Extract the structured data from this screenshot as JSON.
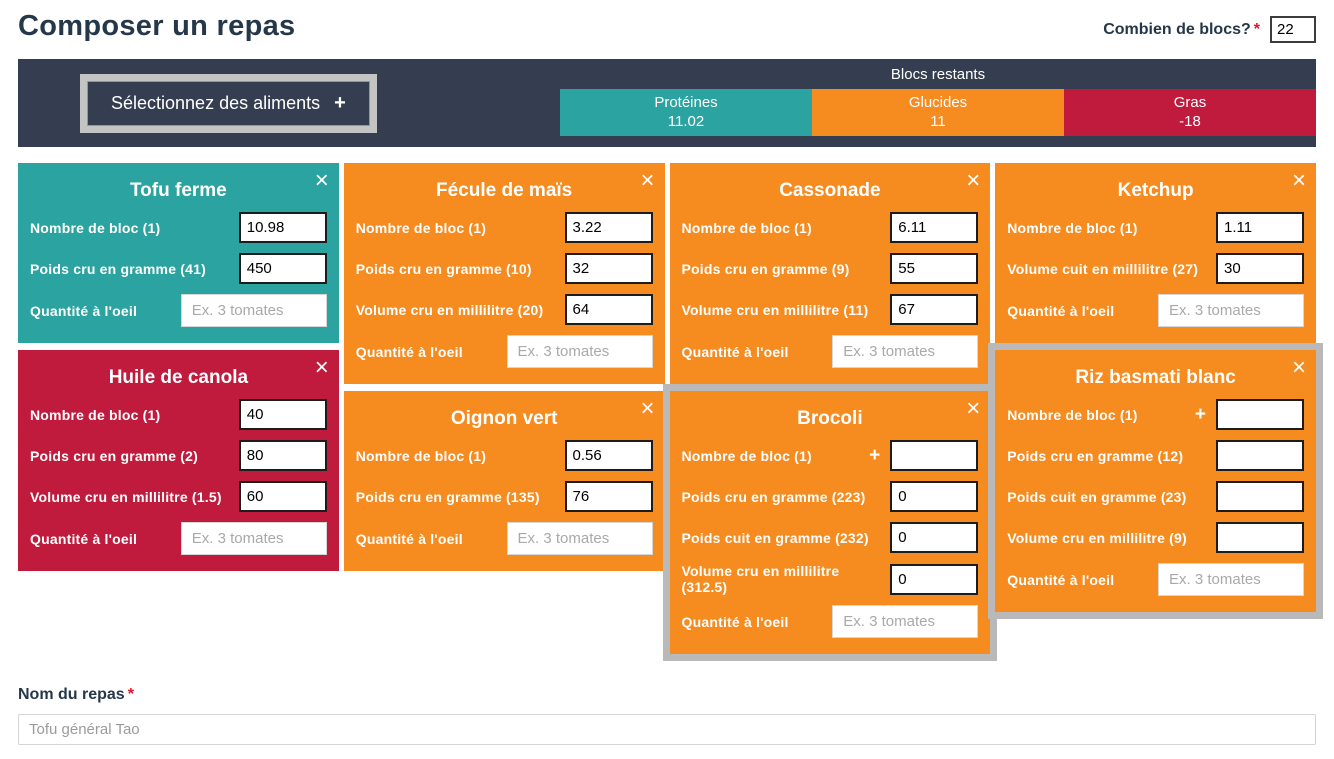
{
  "colors": {
    "teal": "#2ba3a0",
    "orange": "#f68b1f",
    "red": "#c01b3d",
    "navbar": "#353e50",
    "selected_frame": "#b9b9b9",
    "heading_text": "#253849",
    "required_star": "#e8112d"
  },
  "icons": {
    "close": "×",
    "plus": "+"
  },
  "header": {
    "title": "Composer un repas",
    "blocs_question": {
      "label": "Combien de blocs?",
      "required_marker": "*",
      "value": "22"
    }
  },
  "toolbar": {
    "select_foods_label": "Sélectionnez des aliments",
    "blocs_restants_title": "Blocs restants",
    "macros": [
      {
        "key": "proteines",
        "name": "Protéines",
        "value": "11.02",
        "color": "#2ba3a0"
      },
      {
        "key": "glucides",
        "name": "Glucides",
        "value": "11",
        "color": "#f68b1f"
      },
      {
        "key": "gras",
        "name": "Gras",
        "value": "-18",
        "color": "#c01b3d"
      }
    ]
  },
  "cards": [
    {
      "slug": "tofu-ferme",
      "name": "Tofu ferme",
      "color": "teal",
      "selected": false,
      "column": 0,
      "fields": [
        {
          "label": "Nombre de bloc (1)",
          "value": "10.98"
        },
        {
          "label": "Poids cru en gramme (41)",
          "value": "450"
        },
        {
          "label": "Quantité à l'oeil",
          "value": "",
          "placeholder": "Ex. 3 tomates"
        }
      ]
    },
    {
      "slug": "huile-de-canola",
      "name": "Huile de canola",
      "color": "red",
      "selected": false,
      "column": 0,
      "fields": [
        {
          "label": "Nombre de bloc (1)",
          "value": "40"
        },
        {
          "label": "Poids cru en gramme (2)",
          "value": "80"
        },
        {
          "label": "Volume cru en millilitre (1.5)",
          "value": "60"
        },
        {
          "label": "Quantité à l'oeil",
          "value": "",
          "placeholder": "Ex. 3 tomates"
        }
      ]
    },
    {
      "slug": "fecule-de-mais",
      "name": "Fécule de maïs",
      "color": "orange",
      "selected": false,
      "column": 1,
      "fields": [
        {
          "label": "Nombre de bloc (1)",
          "value": "3.22"
        },
        {
          "label": "Poids cru en gramme (10)",
          "value": "32"
        },
        {
          "label": "Volume cru en millilitre (20)",
          "value": "64"
        },
        {
          "label": "Quantité à l'oeil",
          "value": "",
          "placeholder": "Ex. 3 tomates"
        }
      ]
    },
    {
      "slug": "oignon-vert",
      "name": "Oignon vert",
      "color": "orange",
      "selected": false,
      "column": 1,
      "fields": [
        {
          "label": "Nombre de bloc (1)",
          "value": "0.56"
        },
        {
          "label": "Poids cru en gramme (135)",
          "value": "76"
        },
        {
          "label": "Quantité à l'oeil",
          "value": "",
          "placeholder": "Ex. 3 tomates"
        }
      ]
    },
    {
      "slug": "cassonade",
      "name": "Cassonade",
      "color": "orange",
      "selected": false,
      "column": 2,
      "fields": [
        {
          "label": "Nombre de bloc (1)",
          "value": "6.11"
        },
        {
          "label": "Poids cru en gramme (9)",
          "value": "55"
        },
        {
          "label": "Volume cru en millilitre (11)",
          "value": "67"
        },
        {
          "label": "Quantité à l'oeil",
          "value": "",
          "placeholder": "Ex. 3 tomates"
        }
      ]
    },
    {
      "slug": "brocoli",
      "name": "Brocoli",
      "color": "orange",
      "selected": true,
      "column": 2,
      "fields": [
        {
          "label": "Nombre de bloc (1)",
          "value": "",
          "plus": true
        },
        {
          "label": "Poids cru en gramme (223)",
          "value": "0"
        },
        {
          "label": "Poids cuit en gramme (232)",
          "value": "0"
        },
        {
          "label": "Volume cru en millilitre (312.5)",
          "value": "0"
        },
        {
          "label": "Quantité à l'oeil",
          "value": "",
          "placeholder": "Ex. 3 tomates"
        }
      ]
    },
    {
      "slug": "ketchup",
      "name": "Ketchup",
      "color": "orange",
      "selected": false,
      "column": 3,
      "fields": [
        {
          "label": "Nombre de bloc (1)",
          "value": "1.11"
        },
        {
          "label": "Volume cuit en millilitre (27)",
          "value": "30"
        },
        {
          "label": "Quantité à l'oeil",
          "value": "",
          "placeholder": "Ex. 3 tomates"
        }
      ]
    },
    {
      "slug": "riz-basmati-blanc",
      "name": "Riz basmati blanc",
      "color": "orange",
      "selected": true,
      "column": 3,
      "fields": [
        {
          "label": "Nombre de bloc (1)",
          "value": "",
          "plus": true
        },
        {
          "label": "Poids cru en gramme (12)",
          "value": ""
        },
        {
          "label": "Poids cuit en gramme (23)",
          "value": ""
        },
        {
          "label": "Volume cru en millilitre (9)",
          "value": ""
        },
        {
          "label": "Quantité à l'oeil",
          "value": "",
          "placeholder": "Ex. 3 tomates"
        }
      ]
    }
  ],
  "meal_name": {
    "label": "Nom du repas",
    "required_marker": "*",
    "value": "Tofu général Tao"
  }
}
